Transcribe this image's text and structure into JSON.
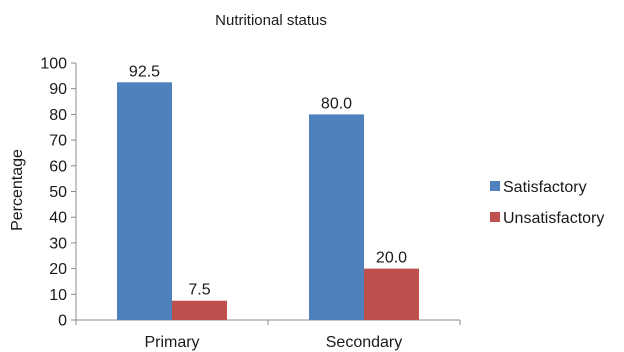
{
  "chart_data": {
    "type": "bar",
    "title": "Nutritional status",
    "xlabel": "",
    "ylabel": "Percentage",
    "categories": [
      "Primary",
      "Secondary"
    ],
    "series": [
      {
        "name": "Satisfactory",
        "values": [
          92.5,
          80.0
        ],
        "labels": [
          "92.5",
          "80.0"
        ],
        "color": "#4f81bd"
      },
      {
        "name": "Unsatisfactory",
        "values": [
          7.5,
          20.0
        ],
        "labels": [
          "7.5",
          "20.0"
        ],
        "color": "#c0504d"
      }
    ],
    "ylim": [
      0,
      100
    ],
    "yticks": [
      "0",
      "10",
      "20",
      "30",
      "40",
      "50",
      "60",
      "70",
      "80",
      "90",
      "100"
    ],
    "grid": false,
    "legend_position": "right"
  }
}
